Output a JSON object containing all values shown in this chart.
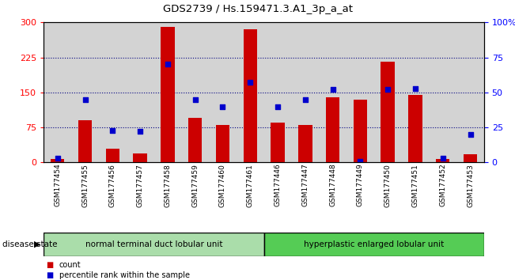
{
  "title": "GDS2739 / Hs.159471.3.A1_3p_a_at",
  "samples": [
    "GSM177454",
    "GSM177455",
    "GSM177456",
    "GSM177457",
    "GSM177458",
    "GSM177459",
    "GSM177460",
    "GSM177461",
    "GSM177446",
    "GSM177447",
    "GSM177448",
    "GSM177449",
    "GSM177450",
    "GSM177451",
    "GSM177452",
    "GSM177453"
  ],
  "counts": [
    8,
    90,
    30,
    20,
    290,
    95,
    80,
    285,
    85,
    80,
    140,
    135,
    215,
    145,
    8,
    18
  ],
  "percentiles": [
    3,
    45,
    23,
    22,
    70,
    45,
    40,
    57,
    40,
    45,
    52,
    1,
    52,
    53,
    3,
    20
  ],
  "group1_label": "normal terminal duct lobular unit",
  "group2_label": "hyperplastic enlarged lobular unit",
  "group1_count": 8,
  "group2_count": 8,
  "ylim_left": [
    0,
    300
  ],
  "ylim_right": [
    0,
    100
  ],
  "yticks_left": [
    0,
    75,
    150,
    225,
    300
  ],
  "yticks_right": [
    0,
    25,
    50,
    75,
    100
  ],
  "bar_color": "#cc0000",
  "dot_color": "#0000cc",
  "bg_color": "#d3d3d3",
  "group1_color": "#aaddaa",
  "group2_color": "#55cc55",
  "disease_state_label": "disease state",
  "legend_count": "count",
  "legend_percentile": "percentile rank within the sample",
  "grid_color": "#000080",
  "grid_linestyle": "dotted"
}
